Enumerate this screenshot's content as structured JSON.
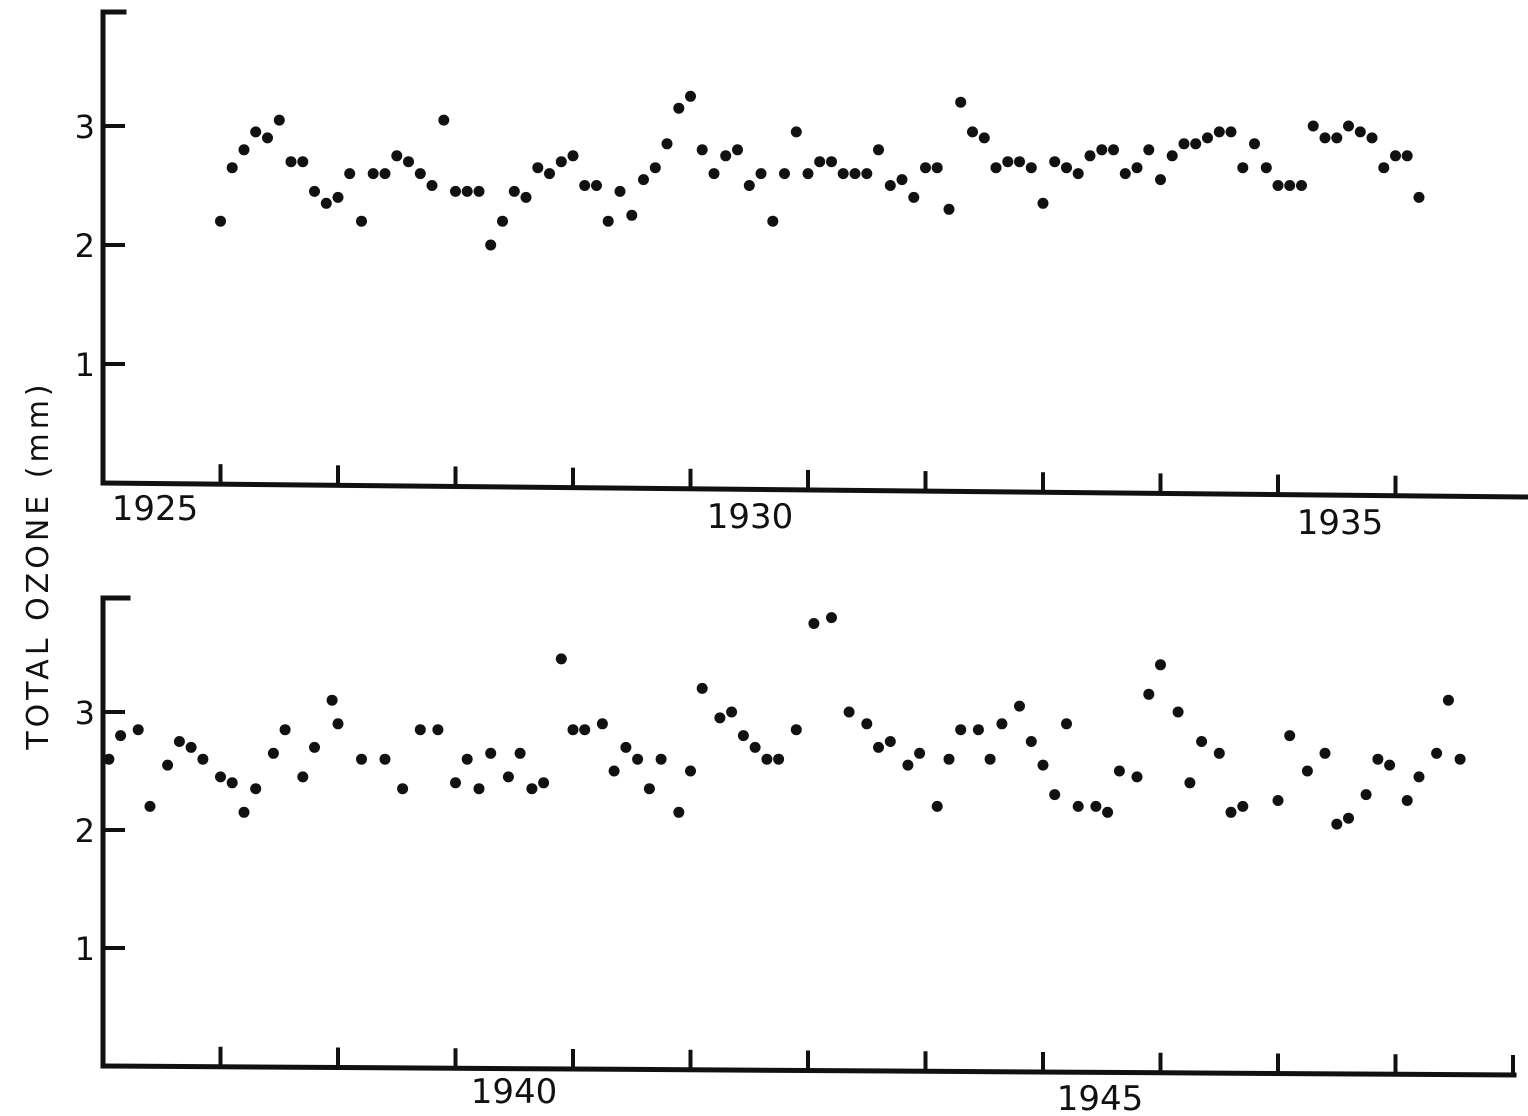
{
  "y_axis_title": "TOTAL  OZONE (mm)",
  "colors": {
    "ink": "#111111",
    "background": "#ffffff"
  },
  "chart_data": [
    {
      "type": "scatter",
      "ylabel": "TOTAL  OZONE (mm)",
      "xlim": [
        1925,
        1936.2
      ],
      "ylim": [
        0,
        4
      ],
      "yticks": [
        "1",
        "2",
        "3"
      ],
      "xtick_labels": [
        "1925",
        "1930",
        "1935"
      ],
      "grid": false,
      "x": [
        1926.0,
        1926.1,
        1926.2,
        1926.3,
        1926.4,
        1926.5,
        1926.6,
        1926.7,
        1926.8,
        1926.9,
        1927.0,
        1927.1,
        1927.2,
        1927.3,
        1927.4,
        1927.5,
        1927.6,
        1927.7,
        1927.8,
        1927.9,
        1928.0,
        1928.1,
        1928.2,
        1928.3,
        1928.4,
        1928.5,
        1928.6,
        1928.7,
        1928.8,
        1928.9,
        1929.0,
        1929.1,
        1929.2,
        1929.3,
        1929.4,
        1929.5,
        1929.6,
        1929.7,
        1929.8,
        1929.9,
        1930.0,
        1930.1,
        1930.2,
        1930.3,
        1930.4,
        1930.5,
        1930.6,
        1930.7,
        1930.8,
        1930.9,
        1931.0,
        1931.1,
        1931.2,
        1931.3,
        1931.4,
        1931.5,
        1931.6,
        1931.7,
        1931.8,
        1931.9,
        1932.0,
        1932.1,
        1932.2,
        1932.3,
        1932.4,
        1932.5,
        1932.6,
        1932.7,
        1932.8,
        1932.9,
        1933.0,
        1933.1,
        1933.2,
        1933.3,
        1933.4,
        1933.5,
        1933.6,
        1933.7,
        1933.8,
        1933.9,
        1934.0,
        1934.1,
        1934.2,
        1934.3,
        1934.4,
        1934.5,
        1934.6,
        1934.7,
        1934.8,
        1934.9,
        1935.0,
        1935.1,
        1935.2,
        1935.3,
        1935.4,
        1935.5,
        1935.6,
        1935.7,
        1935.8,
        1935.9,
        1936.0,
        1936.1,
        1936.2
      ],
      "y": [
        2.2,
        2.65,
        2.8,
        2.95,
        2.9,
        3.05,
        2.7,
        2.7,
        2.45,
        2.35,
        2.4,
        2.6,
        2.2,
        2.6,
        2.6,
        2.75,
        2.7,
        2.6,
        2.5,
        3.05,
        2.45,
        2.45,
        2.45,
        2.0,
        2.2,
        2.45,
        2.4,
        2.65,
        2.6,
        2.7,
        2.75,
        2.5,
        2.5,
        2.2,
        2.45,
        2.25,
        2.55,
        2.65,
        2.85,
        3.15,
        3.25,
        2.8,
        2.6,
        2.75,
        2.8,
        2.5,
        2.6,
        2.2,
        2.6,
        2.95,
        2.6,
        2.7,
        2.7,
        2.6,
        2.6,
        2.6,
        2.8,
        2.5,
        2.55,
        2.4,
        2.65,
        2.65,
        2.3,
        3.2,
        2.95,
        2.9,
        2.65,
        2.7,
        2.7,
        2.65,
        2.35,
        2.7,
        2.65,
        2.6,
        2.75,
        2.8,
        2.8,
        2.6,
        2.65,
        2.8,
        2.55,
        2.75,
        2.85,
        2.85,
        2.9,
        2.95,
        2.95,
        2.65,
        2.85,
        2.65,
        2.5,
        2.5,
        2.5,
        3.0,
        2.9,
        2.9,
        3.0,
        2.95,
        2.9,
        2.65,
        2.75,
        2.75,
        2.4
      ]
    },
    {
      "type": "scatter",
      "ylabel": "TOTAL  OZONE (mm)",
      "xlim": [
        1936.0,
        1947.2
      ],
      "ylim": [
        0,
        4
      ],
      "yticks": [
        "1",
        "2",
        "3"
      ],
      "xtick_labels": [
        "1940",
        "1945"
      ],
      "grid": false,
      "x": [
        1936.05,
        1936.15,
        1936.3,
        1936.4,
        1936.55,
        1936.65,
        1936.75,
        1936.85,
        1937.0,
        1937.1,
        1937.2,
        1937.3,
        1937.45,
        1937.55,
        1937.7,
        1937.8,
        1937.95,
        1938.0,
        1938.2,
        1938.4,
        1938.55,
        1938.7,
        1938.85,
        1939.0,
        1939.1,
        1939.2,
        1939.3,
        1939.45,
        1939.55,
        1939.65,
        1939.75,
        1939.9,
        1940.0,
        1940.1,
        1940.25,
        1940.35,
        1940.45,
        1940.55,
        1940.65,
        1940.75,
        1940.9,
        1941.0,
        1941.1,
        1941.25,
        1941.35,
        1941.45,
        1941.55,
        1941.65,
        1941.75,
        1941.9,
        1942.05,
        1942.2,
        1942.35,
        1942.5,
        1942.6,
        1942.7,
        1942.85,
        1942.95,
        1943.1,
        1943.2,
        1943.3,
        1943.45,
        1943.55,
        1943.65,
        1943.8,
        1943.9,
        1944.0,
        1944.1,
        1944.2,
        1944.3,
        1944.45,
        1944.55,
        1944.65,
        1944.8,
        1944.9,
        1945.0,
        1945.15,
        1945.25,
        1945.35,
        1945.5,
        1945.6,
        1945.7,
        1946.0,
        1946.1,
        1946.25,
        1946.4,
        1946.5,
        1946.6,
        1946.75,
        1946.85,
        1946.95,
        1947.1,
        1947.2,
        1947.35,
        1947.45,
        1947.55
      ],
      "y": [
        2.6,
        2.8,
        2.85,
        2.2,
        2.55,
        2.75,
        2.7,
        2.6,
        2.45,
        2.4,
        2.15,
        2.35,
        2.65,
        2.85,
        2.45,
        2.7,
        3.1,
        2.9,
        2.6,
        2.6,
        2.35,
        2.85,
        2.85,
        2.4,
        2.6,
        2.35,
        2.65,
        2.45,
        2.65,
        2.35,
        2.4,
        3.45,
        2.85,
        2.85,
        2.9,
        2.5,
        2.7,
        2.6,
        2.35,
        2.6,
        2.15,
        2.5,
        3.2,
        2.95,
        3.0,
        2.8,
        2.7,
        2.6,
        2.6,
        2.85,
        3.75,
        3.8,
        3.0,
        2.9,
        2.7,
        2.75,
        2.55,
        2.65,
        2.2,
        2.6,
        2.85,
        2.85,
        2.6,
        2.9,
        3.05,
        2.75,
        2.55,
        2.3,
        2.9,
        2.2,
        2.2,
        2.15,
        2.5,
        2.45,
        3.15,
        3.4,
        3.0,
        2.4,
        2.75,
        2.65,
        2.15,
        2.2,
        2.25,
        2.8,
        2.5,
        2.65,
        2.05,
        2.1,
        2.3,
        2.6,
        2.55,
        2.25,
        2.45,
        2.65,
        3.1,
        2.6
      ]
    }
  ]
}
